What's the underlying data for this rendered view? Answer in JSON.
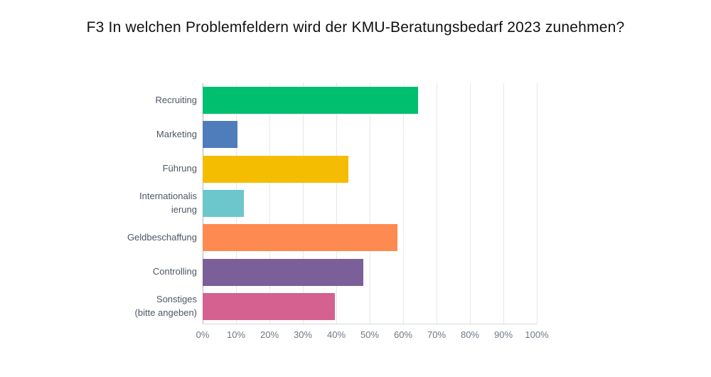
{
  "title": "F3 In welchen Problemfeldern wird der KMU-Beratungsbedarf 2023 zunehmen?",
  "chart_data": {
    "type": "bar",
    "orientation": "horizontal",
    "title": "F3 In welchen Problemfeldern wird der KMU-Beratungsbedarf 2023 zunehmen?",
    "xlabel": "",
    "ylabel": "",
    "xlim": [
      0,
      100
    ],
    "grid": true,
    "legend": false,
    "categories": [
      "Recruiting",
      "Marketing",
      "Führung",
      "Internationalisierung",
      "Geldbeschaffung",
      "Controlling",
      "Sonstiges (bitte angeben)"
    ],
    "label_lines": [
      [
        "Recruiting"
      ],
      [
        "Marketing"
      ],
      [
        "Führung"
      ],
      [
        "Internationalis",
        "ierung"
      ],
      [
        "Geldbeschaffung"
      ],
      [
        "Controlling"
      ],
      [
        "Sonstiges",
        "(bitte angeben)"
      ]
    ],
    "values": [
      64.5,
      10.4,
      43.7,
      12.4,
      58.4,
      48.0,
      39.6
    ],
    "unit": "%",
    "bar_colors": [
      "#00bf6f",
      "#4f7cba",
      "#f5bd02",
      "#6bc7cb",
      "#fd8a50",
      "#7b5f98",
      "#d4618f"
    ],
    "x_ticks": [
      "0%",
      "10%",
      "20%",
      "30%",
      "40%",
      "50%",
      "60%",
      "70%",
      "80%",
      "90%",
      "100%"
    ],
    "colors": {
      "background": "#ffffff",
      "gridline": "#e5e7e9",
      "zero_axis": "#aeb3ba",
      "bottom_axis": "#d5d8db",
      "category_label": "#4e5666",
      "tick_label": "#6f7786",
      "title_text": "#111111"
    }
  }
}
